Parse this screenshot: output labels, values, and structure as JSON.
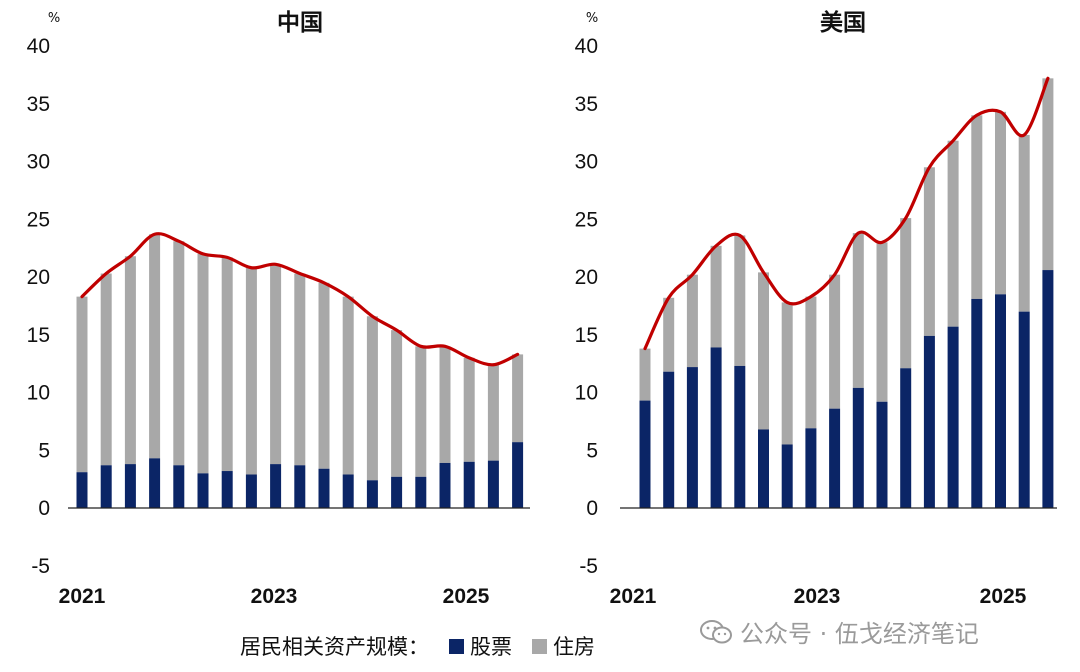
{
  "colors": {
    "stock": "#0b2566",
    "housing": "#a8a8a8",
    "line": "#c00000",
    "axis": "#222222"
  },
  "legend": {
    "title": "居民相关资产规模：",
    "stock": "股票",
    "housing": "住房"
  },
  "watermark": {
    "text": "公众号 · 伍戈经济笔记",
    "icon": "wechat-icon"
  },
  "chart_data": [
    {
      "type": "bar",
      "stacked": true,
      "title": "中国",
      "unit": "%",
      "ylim": [
        -5,
        40
      ],
      "yticks": [
        -5,
        0,
        5,
        10,
        15,
        20,
        25,
        30,
        35,
        40
      ],
      "xticks": [
        "2021",
        "2023",
        "2025"
      ],
      "xtick_index": [
        0,
        8,
        16
      ],
      "series": [
        {
          "name": "股票",
          "values": [
            3.1,
            3.7,
            3.8,
            4.3,
            3.7,
            3.0,
            3.2,
            2.9,
            3.8,
            3.7,
            3.4,
            2.9,
            2.4,
            2.7,
            2.7,
            3.9,
            4.0,
            4.1,
            5.7
          ]
        },
        {
          "name": "住房",
          "values": [
            15.2,
            16.6,
            18.0,
            19.4,
            19.4,
            19.0,
            18.5,
            17.9,
            17.3,
            16.6,
            16.1,
            15.4,
            14.2,
            12.7,
            11.3,
            10.1,
            9.0,
            8.3,
            7.6
          ]
        }
      ],
      "total_line": [
        18.3,
        20.3,
        21.8,
        23.7,
        23.1,
        22.0,
        21.7,
        20.8,
        21.1,
        20.3,
        19.5,
        18.3,
        16.6,
        15.4,
        14.0,
        14.0,
        13.0,
        12.4,
        13.3
      ]
    },
    {
      "type": "bar",
      "stacked": true,
      "title": "美国",
      "unit": "%",
      "ylim": [
        -5,
        40
      ],
      "yticks": [
        -5,
        0,
        5,
        10,
        15,
        20,
        25,
        30,
        35,
        40
      ],
      "xticks": [
        "2021",
        "2023",
        "2025"
      ],
      "xtick_index": [
        0,
        8,
        16
      ],
      "series": [
        {
          "name": "股票",
          "values": [
            9.3,
            11.8,
            12.2,
            13.9,
            12.3,
            6.8,
            5.5,
            6.9,
            8.6,
            10.4,
            9.2,
            12.1,
            14.9,
            15.7,
            18.1,
            18.5,
            17.0,
            20.6
          ]
        },
        {
          "name": "住房",
          "values": [
            4.5,
            6.4,
            8.0,
            8.8,
            11.3,
            13.6,
            12.3,
            11.4,
            11.6,
            13.4,
            13.8,
            13.0,
            14.6,
            16.1,
            15.9,
            15.8,
            15.3,
            16.6
          ]
        }
      ],
      "total_line": [
        13.8,
        18.2,
        20.2,
        22.7,
        23.6,
        20.4,
        17.8,
        18.3,
        20.2,
        23.8,
        23.0,
        25.1,
        29.5,
        31.8,
        34.0,
        34.3,
        32.3,
        37.2
      ]
    }
  ]
}
